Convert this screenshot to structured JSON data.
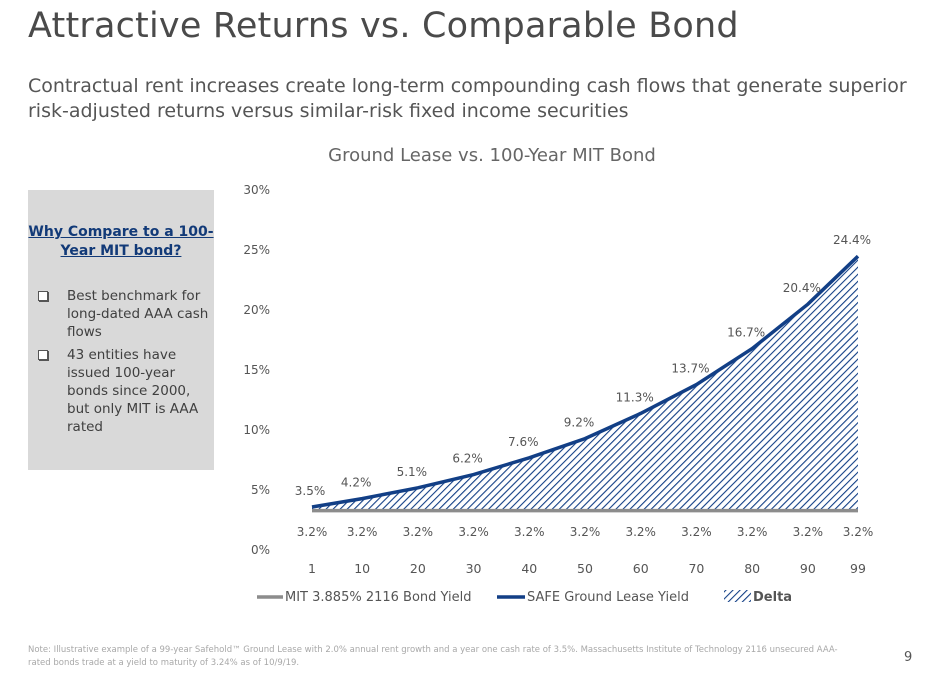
{
  "page": {
    "title": "Attractive Returns vs. Comparable Bond",
    "subtitle": "Contractual rent increases create long-term compounding cash flows that generate superior risk-adjusted returns versus similar-risk fixed income securities",
    "footnote": "Note: Illustrative example of a 99-year Safehold™ Ground Lease with 2.0% annual rent growth and a year one cash rate of 3.5%. Massachusetts Institute of Technology 2116 unsecured AAA-rated bonds trade at a yield to maturity of 3.24% as of 10/9/19.",
    "page_number": "9"
  },
  "sidebar": {
    "heading": "Why Compare to a 100-Year MIT bond?",
    "bullets": [
      "Best benchmark for long-dated AAA cash flows",
      "43 entities have issued 100-year bonds since 2000, but only MIT is AAA rated"
    ]
  },
  "colors": {
    "safe": "#123f86",
    "mit": "#8c8c8c",
    "delta": "#123f86",
    "text": "#555555"
  },
  "chart_data": {
    "type": "line",
    "title": "Ground Lease vs. 100-Year MIT Bond",
    "xlabel": "",
    "ylabel": "",
    "x": [
      1,
      10,
      20,
      30,
      40,
      50,
      60,
      70,
      80,
      90,
      99
    ],
    "x_tick_labels": [
      "1",
      "10",
      "20",
      "30",
      "40",
      "50",
      "60",
      "70",
      "80",
      "90",
      "99"
    ],
    "ylim": [
      0,
      30
    ],
    "y_ticks": [
      0,
      5,
      10,
      15,
      20,
      25,
      30
    ],
    "y_tick_labels": [
      "0%",
      "5%",
      "10%",
      "15%",
      "20%",
      "25%",
      "30%"
    ],
    "series": [
      {
        "name": "MIT 3.885% 2116 Bond Yield",
        "values": [
          3.2,
          3.2,
          3.2,
          3.2,
          3.2,
          3.2,
          3.2,
          3.2,
          3.2,
          3.2,
          3.2
        ],
        "labels": [
          "3.2%",
          "3.2%",
          "3.2%",
          "3.2%",
          "3.2%",
          "3.2%",
          "3.2%",
          "3.2%",
          "3.2%",
          "3.2%",
          "3.2%"
        ]
      },
      {
        "name": "SAFE Ground Lease Yield",
        "values": [
          3.5,
          4.2,
          5.1,
          6.2,
          7.6,
          9.2,
          11.3,
          13.7,
          16.7,
          20.4,
          24.4
        ],
        "labels": [
          "3.5%",
          "4.2%",
          "5.1%",
          "6.2%",
          "7.6%",
          "9.2%",
          "11.3%",
          "13.7%",
          "16.7%",
          "20.4%",
          "24.4%"
        ]
      }
    ],
    "area_label": "Delta",
    "legend_position": "bottom"
  }
}
